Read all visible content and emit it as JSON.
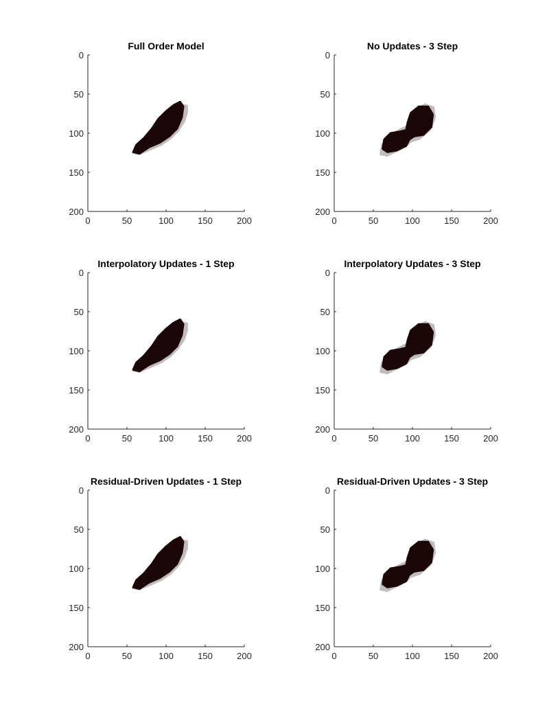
{
  "colors": {
    "background": "#ffffff",
    "region_fill": "#1a0606",
    "outline_fill": "#c2bdbd",
    "axis": "#262626"
  },
  "chart_data": [
    {
      "type": "heatmap",
      "title": "Full Order Model",
      "xlim": [
        0,
        200
      ],
      "ylim": [
        0,
        200
      ],
      "y_reversed": true,
      "xticks": [
        "0",
        "50",
        "100",
        "150",
        "200"
      ],
      "yticks": [
        "0",
        "50",
        "100",
        "150",
        "200"
      ],
      "shape": "single-elongated",
      "region_center": [
        92,
        98
      ],
      "region_extent_x": [
        58,
        122
      ],
      "region_extent_y": [
        58,
        128
      ]
    },
    {
      "type": "heatmap",
      "title": "No Updates - 3 Step",
      "xlim": [
        0,
        200
      ],
      "ylim": [
        0,
        200
      ],
      "y_reversed": true,
      "xticks": [
        "0",
        "50",
        "100",
        "150",
        "200"
      ],
      "yticks": [
        "0",
        "50",
        "100",
        "150",
        "200"
      ],
      "shape": "two-lobe",
      "region_center": [
        92,
        92
      ],
      "region_extent_x": [
        62,
        128
      ],
      "region_extent_y": [
        60,
        122
      ]
    },
    {
      "type": "heatmap",
      "title": "Interpolatory Updates - 1 Step",
      "xlim": [
        0,
        200
      ],
      "ylim": [
        0,
        200
      ],
      "y_reversed": true,
      "xticks": [
        "0",
        "50",
        "100",
        "150",
        "200"
      ],
      "yticks": [
        "0",
        "50",
        "100",
        "150",
        "200"
      ],
      "shape": "single-elongated",
      "region_center": [
        94,
        94
      ],
      "region_extent_x": [
        58,
        124
      ],
      "region_extent_y": [
        55,
        128
      ]
    },
    {
      "type": "heatmap",
      "title": "Interpolatory Updates - 3 Step",
      "xlim": [
        0,
        200
      ],
      "ylim": [
        0,
        200
      ],
      "y_reversed": true,
      "xticks": [
        "0",
        "50",
        "100",
        "150",
        "200"
      ],
      "yticks": [
        "0",
        "50",
        "100",
        "150",
        "200"
      ],
      "shape": "two-lobe",
      "region_center": [
        92,
        92
      ],
      "region_extent_x": [
        62,
        128
      ],
      "region_extent_y": [
        60,
        124
      ]
    },
    {
      "type": "heatmap",
      "title": "Residual-Driven Updates - 1 Step",
      "xlim": [
        0,
        200
      ],
      "ylim": [
        0,
        200
      ],
      "y_reversed": true,
      "xticks": [
        "0",
        "50",
        "100",
        "150",
        "200"
      ],
      "yticks": [
        "0",
        "50",
        "100",
        "150",
        "200"
      ],
      "shape": "single-elongated",
      "region_center": [
        94,
        94
      ],
      "region_extent_x": [
        58,
        124
      ],
      "region_extent_y": [
        55,
        128
      ]
    },
    {
      "type": "heatmap",
      "title": "Residual-Driven Updates - 3 Step",
      "xlim": [
        0,
        200
      ],
      "ylim": [
        0,
        200
      ],
      "y_reversed": true,
      "xticks": [
        "0",
        "50",
        "100",
        "150",
        "200"
      ],
      "yticks": [
        "0",
        "50",
        "100",
        "150",
        "200"
      ],
      "shape": "two-lobe",
      "region_center": [
        92,
        92
      ],
      "region_extent_x": [
        62,
        128
      ],
      "region_extent_y": [
        60,
        122
      ]
    }
  ]
}
